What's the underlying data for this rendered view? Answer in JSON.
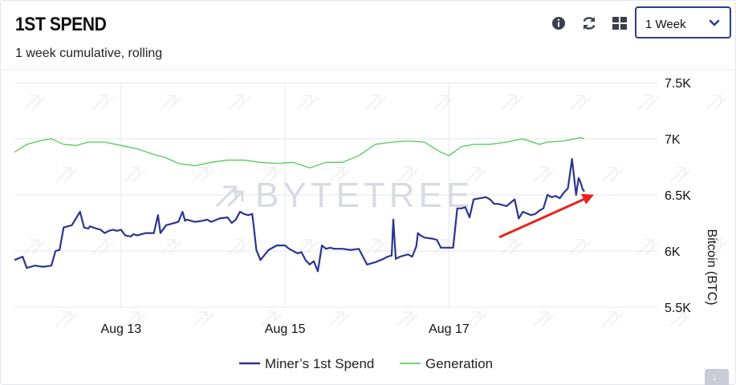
{
  "header": {
    "title": "1ST SPEND",
    "subtitle": "1 week cumulative, rolling",
    "tools": [
      "info-icon",
      "refresh-icon",
      "grid-icon"
    ],
    "period_selected": "1 Week"
  },
  "watermark": "BYTETREE",
  "colors": {
    "accent": "#2f3a8f",
    "miners_spend": "#2b3590",
    "generation": "#42c945",
    "arrow": "#e8231c"
  },
  "chart_data": {
    "type": "line",
    "title": "1ST SPEND",
    "subtitle": "1 week cumulative, rolling",
    "ylabel": "Bitcoin (BTC)",
    "ylim": [
      5500,
      7500
    ],
    "yticks": [
      5500,
      6000,
      6500,
      7000,
      7500
    ],
    "ytick_labels": [
      "5.5K",
      "6K",
      "6.5K",
      "7K",
      "7.5K"
    ],
    "xlim": [
      11.7,
      19.55
    ],
    "xticks": [
      13,
      15,
      17
    ],
    "xtick_labels": [
      "Aug 13",
      "Aug 15",
      "Aug 17"
    ],
    "grid": true,
    "legend_position": "bottom",
    "series": [
      {
        "name": "Miner’s 1st Spend",
        "x": [
          11.7,
          11.8,
          11.85,
          11.95,
          12.05,
          12.15,
          12.2,
          12.25,
          12.3,
          12.35,
          12.4,
          12.5,
          12.55,
          12.6,
          12.62,
          12.7,
          12.75,
          12.8,
          12.85,
          12.9,
          12.95,
          13.0,
          13.05,
          13.12,
          13.15,
          13.2,
          13.3,
          13.4,
          13.45,
          13.48,
          13.5,
          13.55,
          13.6,
          13.7,
          13.75,
          13.78,
          13.8,
          13.9,
          14.0,
          14.05,
          14.1,
          14.2,
          14.3,
          14.35,
          14.4,
          14.45,
          14.5,
          14.55,
          14.6,
          14.62,
          14.65,
          14.7,
          14.8,
          14.9,
          15.0,
          15.05,
          15.15,
          15.2,
          15.25,
          15.3,
          15.35,
          15.4,
          15.45,
          15.5,
          15.55,
          15.6,
          15.7,
          15.8,
          15.9,
          16.0,
          16.05,
          16.1,
          16.2,
          16.25,
          16.3,
          16.32,
          16.35,
          16.4,
          16.5,
          16.55,
          16.6,
          16.62,
          16.65,
          16.7,
          16.8,
          16.85,
          16.9,
          16.95,
          17.0,
          17.05,
          17.1,
          17.15,
          17.2,
          17.25,
          17.3,
          17.45,
          17.5,
          17.55,
          17.6,
          17.7,
          17.8,
          17.85,
          17.9,
          18.0,
          18.05,
          18.1,
          18.15,
          18.2,
          18.25,
          18.3,
          18.35,
          18.4,
          18.45,
          18.5,
          18.55,
          18.58,
          18.6,
          18.63,
          18.65
        ],
        "y": [
          5920,
          5950,
          5850,
          5870,
          5860,
          5870,
          6000,
          6010,
          6210,
          6220,
          6230,
          6350,
          6210,
          6200,
          6220,
          6200,
          6190,
          6160,
          6180,
          6190,
          6180,
          6190,
          6140,
          6130,
          6150,
          6140,
          6160,
          6160,
          6320,
          6160,
          6180,
          6230,
          6240,
          6260,
          6350,
          6270,
          6280,
          6260,
          6270,
          6280,
          6260,
          6290,
          6300,
          6250,
          6280,
          6350,
          6330,
          6320,
          6330,
          6210,
          6010,
          5920,
          6010,
          6050,
          6050,
          6020,
          5980,
          5990,
          5920,
          5880,
          5910,
          5820,
          6050,
          6020,
          6030,
          6020,
          6020,
          6010,
          6020,
          5880,
          5890,
          5900,
          5930,
          5950,
          5960,
          6280,
          5930,
          5950,
          5970,
          5950,
          6040,
          6160,
          6140,
          6120,
          6110,
          6100,
          6030,
          6030,
          6030,
          6030,
          6380,
          6380,
          6390,
          6300,
          6460,
          6480,
          6460,
          6420,
          6420,
          6400,
          6460,
          6290,
          6350,
          6320,
          6330,
          6360,
          6380,
          6500,
          6480,
          6490,
          6470,
          6520,
          6560,
          6820,
          6500,
          6650,
          6620,
          6550,
          6530
        ]
      },
      {
        "name": "Generation",
        "x": [
          11.7,
          11.85,
          12.0,
          12.15,
          12.3,
          12.45,
          12.6,
          12.8,
          13.0,
          13.2,
          13.4,
          13.55,
          13.7,
          13.9,
          14.1,
          14.3,
          14.5,
          14.7,
          14.9,
          15.1,
          15.3,
          15.5,
          15.7,
          15.9,
          16.1,
          16.3,
          16.5,
          16.7,
          16.9,
          17.0,
          17.15,
          17.3,
          17.5,
          17.7,
          17.9,
          18.1,
          18.2,
          18.4,
          18.6,
          18.65
        ],
        "y": [
          6880,
          6950,
          6980,
          7000,
          6950,
          6940,
          6970,
          6970,
          6940,
          6910,
          6860,
          6830,
          6780,
          6760,
          6790,
          6810,
          6810,
          6790,
          6780,
          6790,
          6740,
          6790,
          6790,
          6850,
          6950,
          6970,
          6980,
          6970,
          6880,
          6850,
          6930,
          6950,
          6950,
          6970,
          7000,
          6950,
          6970,
          6980,
          7010,
          7000
        ]
      }
    ],
    "annotations": [
      "red-arrow-to-latest-value"
    ]
  }
}
